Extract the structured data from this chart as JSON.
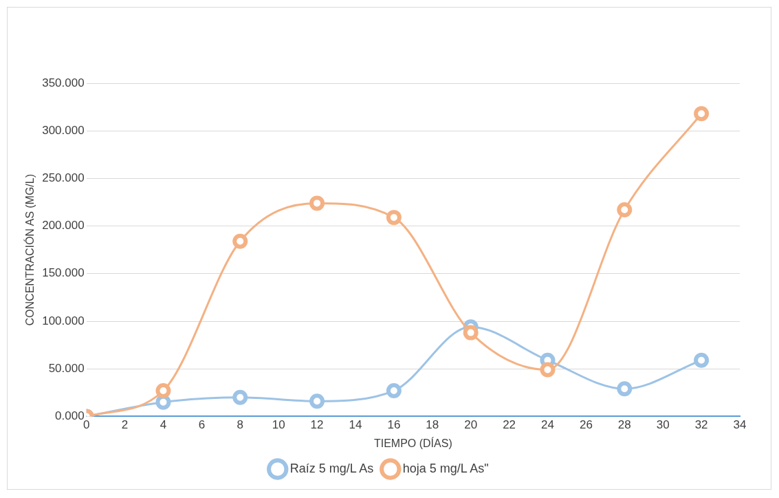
{
  "chart_data": {
    "type": "line",
    "xlabel": "TIEMPO (DÍAS)",
    "ylabel": "CONCENTRACIÓN AS (MG/L)",
    "x": [
      0,
      4,
      8,
      12,
      16,
      20,
      24,
      28,
      32
    ],
    "series": [
      {
        "name": "Raíz 5 mg/L As",
        "color": "#9dc3e6",
        "values": [
          0,
          15,
          20,
          16,
          27,
          94,
          59,
          29,
          59
        ]
      },
      {
        "name": "hoja 5 mg/L As\"",
        "color": "#f4b183",
        "values": [
          0,
          27,
          184,
          224,
          209,
          88,
          49,
          217,
          318
        ]
      }
    ],
    "xlim": [
      0,
      34
    ],
    "xticks": [
      0,
      2,
      4,
      6,
      8,
      10,
      12,
      14,
      16,
      18,
      20,
      22,
      24,
      26,
      28,
      30,
      32,
      34
    ],
    "ylim": [
      0,
      350
    ],
    "yticks": [
      {
        "value": 0,
        "label": "0.000"
      },
      {
        "value": 50,
        "label": "50.000"
      },
      {
        "value": 100,
        "label": "100.000"
      },
      {
        "value": 150,
        "label": "150.000"
      },
      {
        "value": 200,
        "label": "200.000"
      },
      {
        "value": 250,
        "label": "250.000"
      },
      {
        "value": 300,
        "label": "300.000"
      },
      {
        "value": 350,
        "label": "350.000"
      }
    ],
    "grid": "y",
    "legend": "bottom",
    "marker": "circle",
    "line_style": "solid"
  }
}
